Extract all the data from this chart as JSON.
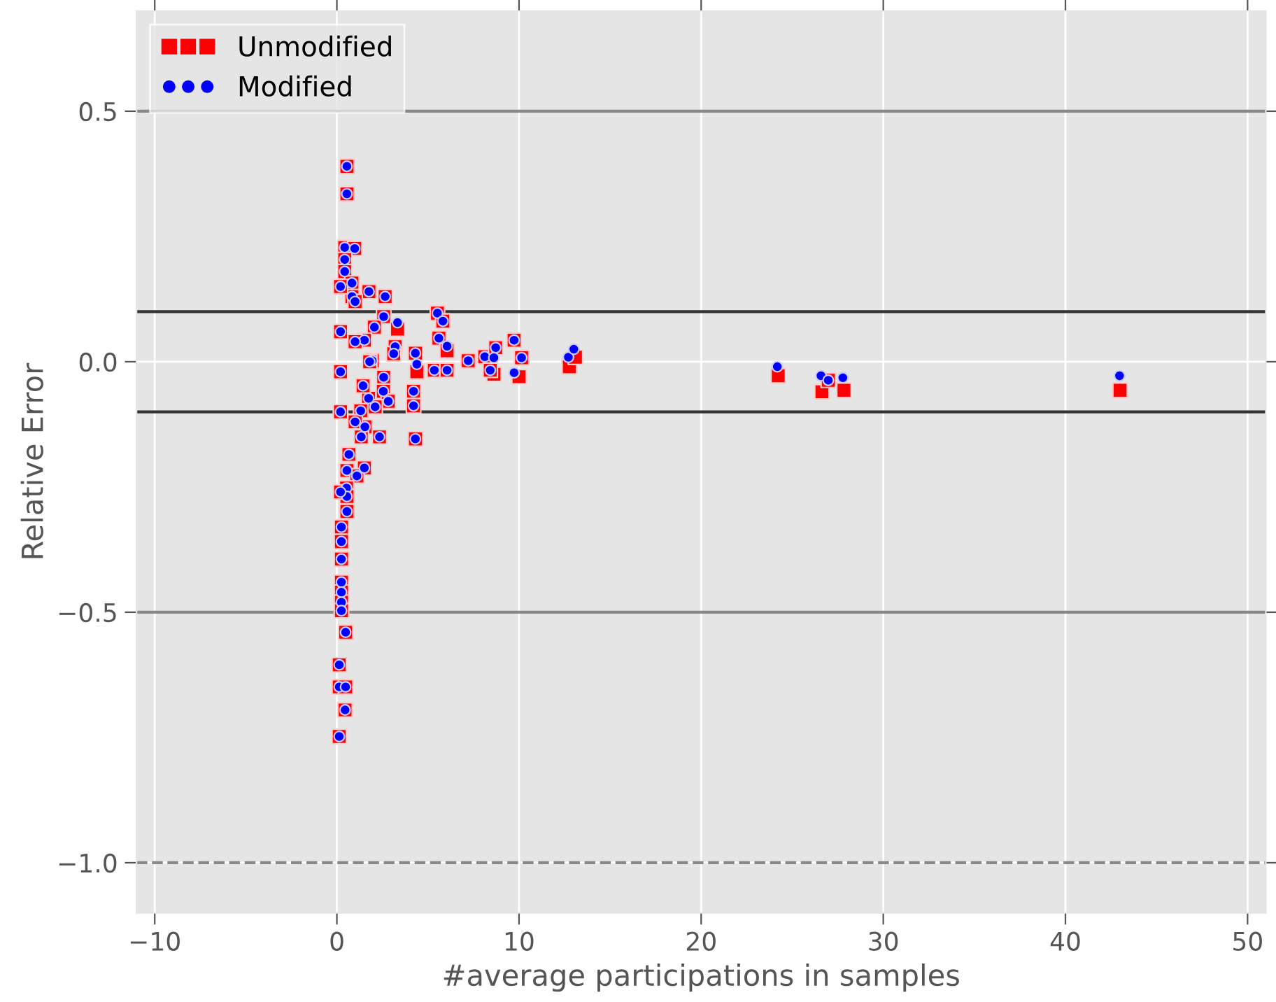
{
  "chart_data": {
    "type": "scatter",
    "xlabel": "#average participations in samples",
    "ylabel": "Relative Error",
    "xlim": [
      -11,
      51
    ],
    "ylim": [
      -1.1,
      0.7
    ],
    "xticks": [
      {
        "value": -10,
        "label": "−10"
      },
      0,
      10,
      20,
      30,
      40,
      50
    ],
    "yticks": [
      {
        "value": -1.0,
        "label": "−1.0"
      },
      {
        "value": -0.5,
        "label": "−0.5"
      },
      {
        "value": 0.0,
        "label": "0.0"
      },
      {
        "value": 0.5,
        "label": "0.5"
      }
    ],
    "grid": true,
    "legend": "top left",
    "ref_lines": [
      {
        "axis": "y",
        "value": 0.5,
        "color": "#888888",
        "line_style": "solid"
      },
      {
        "axis": "y",
        "value": -0.5,
        "color": "#888888",
        "line_style": "solid"
      },
      {
        "axis": "y",
        "value": 0.1,
        "color": "#333333",
        "line_style": "solid"
      },
      {
        "axis": "y",
        "value": -0.1,
        "color": "#333333",
        "line_style": "solid"
      },
      {
        "axis": "y",
        "value": -1.0,
        "color": "#888888",
        "line_style": "dashed"
      }
    ],
    "series": [
      {
        "name": "Unmodified",
        "color": "#ff0000",
        "marker": "square",
        "x": [
          0.55,
          0.55,
          0.43,
          0.98,
          0.43,
          0.43,
          0.83,
          1.76,
          2.65,
          0.83,
          2.57,
          3.33,
          2.06,
          5.52,
          5.82,
          5.6,
          6.05,
          1.51,
          3.2,
          3.12,
          4.31,
          4.39,
          5.35,
          6.05,
          7.21,
          8.12,
          8.72,
          8.62,
          8.42,
          9.73,
          10.14,
          10.0,
          1.94,
          2.57,
          2.55,
          2.82,
          4.21,
          4.21,
          1.74,
          1.44,
          1.31,
          1.54,
          2.34,
          1.34,
          4.31,
          0.66,
          1.51,
          0.55,
          1.1,
          0.53,
          0.55,
          0.55,
          0.25,
          0.25,
          0.25,
          0.25,
          0.25,
          0.25,
          0.25,
          0.48,
          0.13,
          0.13,
          0.48,
          0.45,
          0.13,
          12.76,
          13.1,
          24.23,
          26.63,
          26.98,
          27.84,
          43.0,
          0.2,
          0.2,
          0.2,
          0.2,
          0.2,
          1.0,
          1.0,
          1.0,
          1.8,
          2.1
        ],
        "values": [
          0.39,
          0.335,
          0.228,
          0.226,
          0.204,
          0.18,
          0.157,
          0.14,
          0.13,
          0.13,
          0.09,
          0.065,
          0.069,
          0.097,
          0.081,
          0.047,
          0.022,
          0.043,
          0.03,
          0.016,
          0.017,
          -0.02,
          -0.017,
          -0.017,
          0.002,
          0.01,
          0.028,
          -0.025,
          -0.017,
          0.043,
          0.008,
          -0.03,
          0.002,
          -0.031,
          -0.059,
          -0.079,
          -0.059,
          -0.088,
          -0.073,
          -0.048,
          -0.098,
          -0.13,
          -0.15,
          -0.15,
          -0.154,
          -0.185,
          -0.212,
          -0.217,
          -0.228,
          -0.252,
          -0.269,
          -0.299,
          -0.33,
          -0.359,
          -0.394,
          -0.44,
          -0.46,
          -0.48,
          -0.497,
          -0.54,
          -0.605,
          -0.649,
          -0.649,
          -0.695,
          -0.748,
          -0.01,
          0.009,
          -0.028,
          -0.06,
          -0.037,
          -0.057,
          -0.057,
          0.15,
          0.06,
          -0.02,
          -0.1,
          -0.26,
          0.12,
          0.04,
          -0.12,
          0.0,
          -0.09
        ]
      },
      {
        "name": "Modified",
        "color": "#0000ff",
        "marker": "circle",
        "x": [
          0.55,
          0.55,
          0.43,
          0.98,
          0.43,
          0.43,
          0.83,
          1.76,
          2.65,
          0.83,
          2.57,
          3.33,
          2.06,
          5.52,
          5.82,
          5.6,
          6.05,
          1.51,
          3.2,
          3.12,
          4.31,
          4.39,
          5.35,
          6.05,
          7.21,
          8.12,
          8.72,
          8.62,
          8.42,
          9.73,
          10.14,
          9.73,
          1.94,
          2.57,
          2.55,
          2.82,
          4.21,
          4.21,
          1.74,
          1.44,
          1.31,
          1.54,
          2.34,
          1.34,
          4.31,
          0.66,
          1.51,
          0.55,
          1.1,
          0.53,
          0.55,
          0.55,
          0.25,
          0.25,
          0.25,
          0.25,
          0.25,
          0.25,
          0.25,
          0.48,
          0.13,
          0.13,
          0.48,
          0.45,
          0.13,
          12.71,
          13.01,
          24.18,
          26.58,
          26.98,
          27.78,
          42.97,
          0.2,
          0.2,
          0.2,
          0.2,
          0.2,
          1.0,
          1.0,
          1.0,
          1.8,
          2.1
        ],
        "values": [
          0.39,
          0.335,
          0.228,
          0.226,
          0.204,
          0.18,
          0.157,
          0.14,
          0.13,
          0.13,
          0.09,
          0.078,
          0.069,
          0.097,
          0.081,
          0.047,
          0.031,
          0.043,
          0.03,
          0.016,
          0.017,
          -0.005,
          -0.017,
          -0.017,
          0.002,
          0.01,
          0.028,
          0.008,
          -0.017,
          0.043,
          0.008,
          -0.022,
          0.002,
          -0.031,
          -0.059,
          -0.079,
          -0.059,
          -0.088,
          -0.073,
          -0.048,
          -0.098,
          -0.13,
          -0.15,
          -0.15,
          -0.154,
          -0.185,
          -0.212,
          -0.217,
          -0.228,
          -0.252,
          -0.269,
          -0.299,
          -0.33,
          -0.359,
          -0.394,
          -0.44,
          -0.46,
          -0.48,
          -0.497,
          -0.54,
          -0.605,
          -0.649,
          -0.649,
          -0.695,
          -0.748,
          0.009,
          0.025,
          -0.01,
          -0.028,
          -0.037,
          -0.032,
          -0.028,
          0.15,
          0.06,
          -0.02,
          -0.1,
          -0.26,
          0.12,
          0.04,
          -0.12,
          0.0,
          -0.09
        ]
      }
    ]
  }
}
